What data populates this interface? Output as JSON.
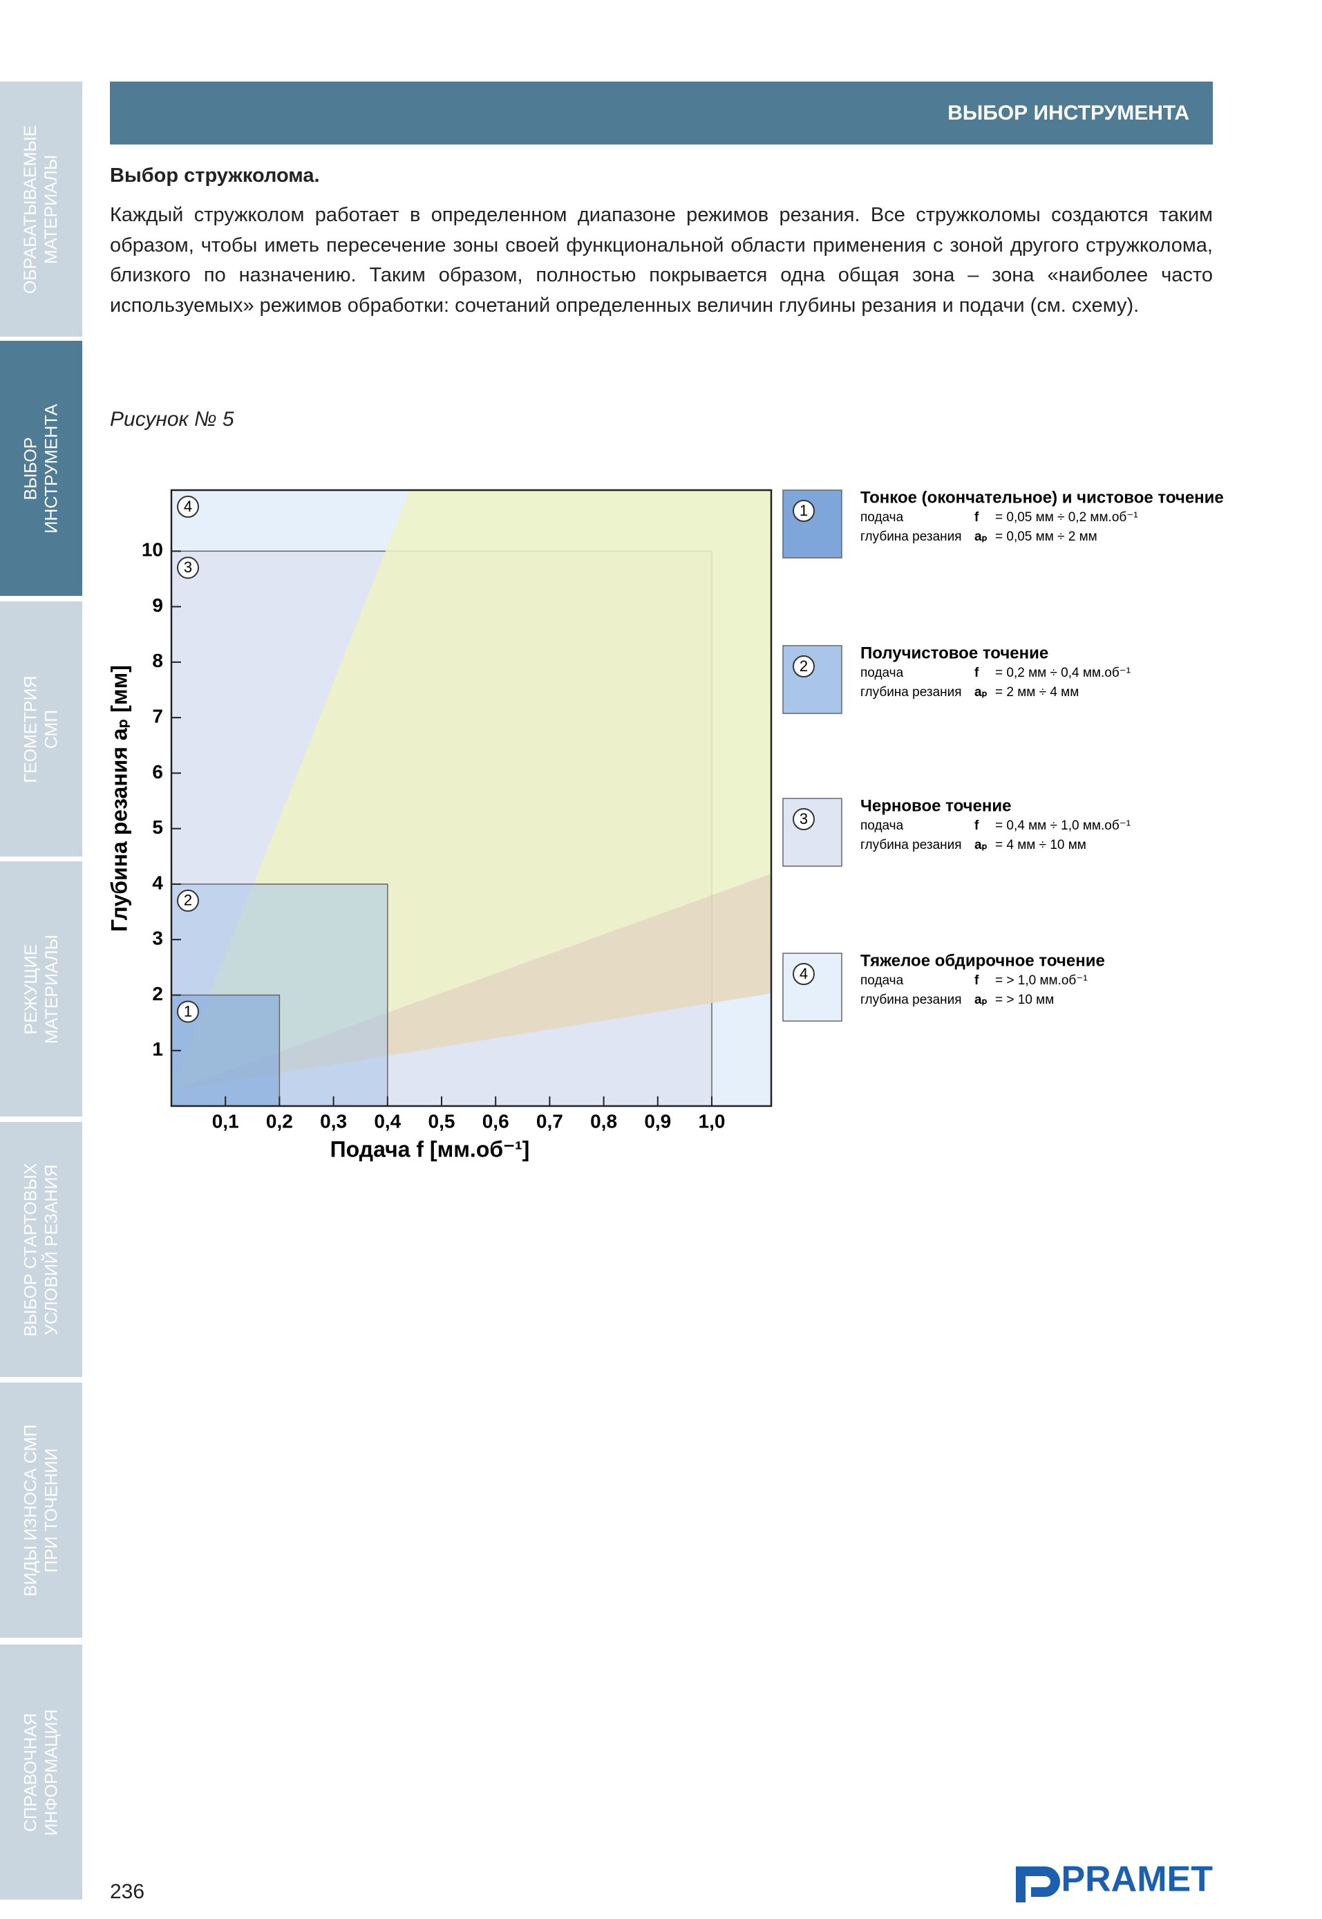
{
  "sidebar": {
    "tabs": [
      {
        "lines": [
          "ОБРАБАТЫВАЕМЫЕ",
          "МАТЕРИАЛЫ"
        ],
        "active": false
      },
      {
        "lines": [
          "ВЫБОР",
          "ИНСТРУМЕНТА"
        ],
        "active": true
      },
      {
        "lines": [
          "ГЕОМЕТРИЯ",
          "СМП"
        ],
        "active": false
      },
      {
        "lines": [
          "РЕЖУЩИЕ",
          "МАТЕРИАЛЫ"
        ],
        "active": false
      },
      {
        "lines": [
          "ВЫБОР СТАРТОВЫХ",
          "УСЛОВИЙ РЕЗАНИЯ"
        ],
        "active": false
      },
      {
        "lines": [
          "ВИДЫ ИЗНОСА СМП",
          "ПРИ ТОЧЕНИИ"
        ],
        "active": false
      },
      {
        "lines": [
          "СПРАВОЧНАЯ",
          "ИНФОРМАЦИЯ"
        ],
        "active": false
      }
    ]
  },
  "header": {
    "title": "ВЫБОР ИНСТРУМЕНТА"
  },
  "section": {
    "heading": "Выбор стружколома.",
    "paragraph": "Каждый стружколом работает в определенном диапазоне режимов резания. Все стружколомы создаются таким образом, чтобы иметь пересечение зоны своей функциональной области применения с зоной другого стружколома, близкого по назначению. Таким образом, полностью покрывается одна общая зона – зона «наиболее часто используемых» режимов обработки: сочетаний определенных величин глубины резания и подачи (см. схему).",
    "caption": "Рисунок № 5"
  },
  "chart_data": {
    "type": "zone",
    "xlabel": "Подача f  [мм.об⁻¹]",
    "ylabel": "Глубина резания aₚ  [мм]",
    "xlim": [
      0,
      1.11
    ],
    "ylim": [
      0,
      11.1
    ],
    "xticks": [
      {
        "value": 0.1,
        "label": "0,1"
      },
      {
        "value": 0.2,
        "label": "0,2"
      },
      {
        "value": 0.3,
        "label": "0,3"
      },
      {
        "value": 0.4,
        "label": "0,4"
      },
      {
        "value": 0.5,
        "label": "0,5"
      },
      {
        "value": 0.6,
        "label": "0,6"
      },
      {
        "value": 0.7,
        "label": "0,7"
      },
      {
        "value": 0.8,
        "label": "0,8"
      },
      {
        "value": 0.9,
        "label": "0,9"
      },
      {
        "value": 1.0,
        "label": "1,0"
      }
    ],
    "yticks": [
      1,
      2,
      3,
      4,
      5,
      6,
      7,
      8,
      9,
      10
    ],
    "zones": [
      {
        "name": "1",
        "color": "#7fa6da",
        "f_range": [
          0,
          0.2
        ],
        "ap_range": [
          0,
          2
        ],
        "title": "Тонкое (окончательное) и чистовое точение",
        "feed_label": "подача",
        "feed_symbol": "f",
        "feed_value": "=  0,05 мм ÷ 0,2 мм.об⁻¹",
        "depth_label": "глубина резания",
        "depth_symbol": "aₚ",
        "depth_value": "=  0,05 мм ÷ 2 мм"
      },
      {
        "name": "2",
        "color": "#a9c6ea",
        "f_range": [
          0,
          0.4
        ],
        "ap_range": [
          0,
          4
        ],
        "title": "Получистовое точение",
        "feed_label": "подача",
        "feed_symbol": "f",
        "feed_value": "=  0,2 мм ÷ 0,4 мм.об⁻¹",
        "depth_label": "глубина резания",
        "depth_symbol": "aₚ",
        "depth_value": "=  2 мм ÷ 4 мм"
      },
      {
        "name": "3",
        "color": "#dfe5f2",
        "f_range": [
          0,
          1.0
        ],
        "ap_range": [
          0,
          10
        ],
        "title": "Черновое точение",
        "feed_label": "подача",
        "feed_symbol": "f",
        "feed_value": "=  0,4 мм ÷ 1,0 мм.об⁻¹",
        "depth_label": "глубина резания",
        "depth_symbol": "aₚ",
        "depth_value": "=  4 мм ÷ 10 мм"
      },
      {
        "name": "4",
        "color": "#e5f0fa",
        "title": "Тяжелое обдирочное точение",
        "feed_label": "подача",
        "feed_symbol": "f",
        "feed_value": "=  > 1,0 мм.об⁻¹",
        "depth_label": "глубина резания",
        "depth_symbol": "aₚ",
        "depth_value": "=  > 10 мм"
      }
    ]
  },
  "footer": {
    "page": "236",
    "logo": "PRAMET"
  }
}
